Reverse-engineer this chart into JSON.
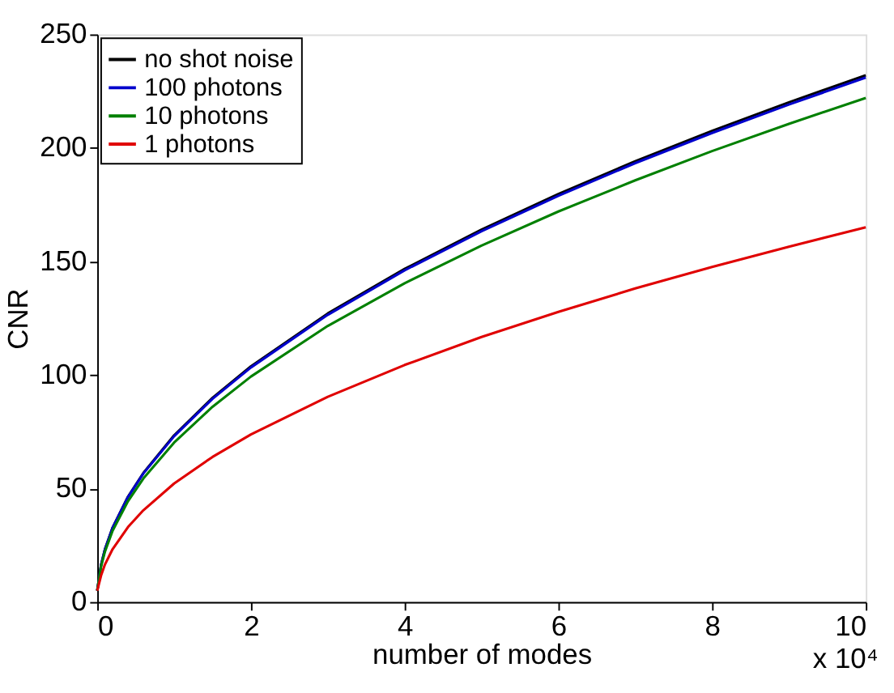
{
  "chart_data": {
    "type": "line",
    "xlabel": "number of modes",
    "ylabel": "CNR",
    "annotations": [
      "x 10⁴"
    ],
    "x": [
      0,
      0.05,
      0.1,
      0.2,
      0.4,
      0.6,
      1,
      1.5,
      2,
      3,
      4,
      5,
      6,
      7,
      8,
      9,
      10
    ],
    "series": [
      {
        "name": "no shot noise",
        "color": "#000000",
        "values": [
          5,
          16.4,
          23.2,
          32.8,
          46.4,
          56.8,
          73.4,
          89.9,
          103.8,
          127.1,
          146.7,
          164.0,
          179.7,
          194.1,
          207.5,
          220.1,
          232
        ]
      },
      {
        "name": "100 photons",
        "color": "#0000cc",
        "values": [
          5,
          16.3,
          23.1,
          32.7,
          46.2,
          56.6,
          73.0,
          89.5,
          103.3,
          126.5,
          146.1,
          163.3,
          178.9,
          193.3,
          206.6,
          219.1,
          231
        ]
      },
      {
        "name": "10 photons",
        "color": "#008000",
        "values": [
          5,
          15.7,
          22.2,
          31.4,
          44.4,
          54.4,
          70.2,
          86.0,
          99.3,
          121.6,
          140.4,
          157.0,
          172.0,
          185.7,
          198.6,
          210.6,
          222
        ]
      },
      {
        "name": "1 photons",
        "color": "#e00000",
        "values": [
          5,
          11.7,
          16.5,
          23.3,
          33.0,
          40.4,
          52.2,
          63.9,
          73.8,
          90.4,
          104.4,
          116.7,
          127.8,
          138.1,
          147.6,
          156.5,
          165
        ]
      }
    ],
    "xlim": [
      0,
      10
    ],
    "xticks": [
      0,
      2,
      4,
      6,
      8,
      10
    ],
    "ylim": [
      0,
      250
    ],
    "yticks": [
      0,
      50,
      100,
      150,
      200,
      250
    ],
    "legend": "top left",
    "grid": false,
    "marker": "none",
    "line_style": "solid"
  }
}
